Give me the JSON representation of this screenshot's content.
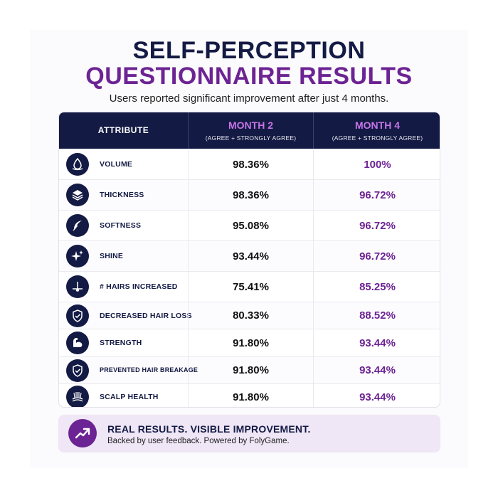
{
  "title_line1": "SELF-PERCEPTION",
  "title_line2": "QUESTIONNAIRE RESULTS",
  "subtitle": "Users reported significant improvement after just 4 months.",
  "colors": {
    "navy": "#131a44",
    "purple": "#6c2393",
    "month_header": "#c774e8",
    "banner_bg": "#efe6f6"
  },
  "table": {
    "header": {
      "attribute": "ATTRIBUTE",
      "month2": "MONTH 2",
      "month2_note": "(AGREE + STRONGLY AGREE)",
      "month4": "MONTH 4",
      "month4_note": "(AGREE + STRONGLY AGREE)"
    },
    "rows": [
      {
        "icon": "water-drop-icon",
        "attribute": "VOLUME",
        "month2": "98.36%",
        "month4": "100%"
      },
      {
        "icon": "layers-icon",
        "attribute": "THICKNESS",
        "month2": "98.36%",
        "month4": "96.72%"
      },
      {
        "icon": "feather-icon",
        "attribute": "SOFTNESS",
        "month2": "95.08%",
        "month4": "96.72%"
      },
      {
        "icon": "sparkles-icon",
        "attribute": "SHINE",
        "month2": "93.44%",
        "month4": "96.72%"
      },
      {
        "icon": "hair-follicle-icon",
        "attribute": "# HAIRS INCREASED",
        "month2": "75.41%",
        "month4": "85.25%"
      },
      {
        "icon": "shield-check-icon",
        "attribute": "DECREASED HAIR LOSS",
        "month2": "80.33%",
        "month4": "88.52%"
      },
      {
        "icon": "flexed-arm-icon",
        "attribute": "STRENGTH",
        "month2": "91.80%",
        "month4": "93.44%"
      },
      {
        "icon": "shield-check-icon",
        "attribute": "PREVENTED HAIR BREAKAGE",
        "month2": "91.80%",
        "month4": "93.44%"
      },
      {
        "icon": "scalp-icon",
        "attribute": "SCALP HEALTH",
        "month2": "91.80%",
        "month4": "93.44%"
      }
    ]
  },
  "banner": {
    "icon": "trending-up-icon",
    "headline": "REAL RESULTS. VISIBLE IMPROVEMENT.",
    "subtext": "Backed by user feedback. Powered by FolyGame."
  }
}
